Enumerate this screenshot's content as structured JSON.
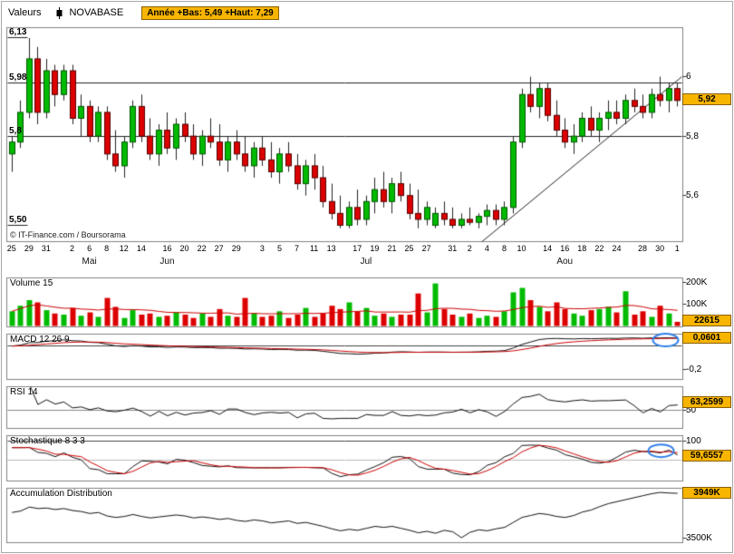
{
  "header": {
    "left_label": "Valeurs",
    "instrument": "NOVABASE",
    "year_range": "Année +Bas: 5,49 +Haut: 7,29"
  },
  "copyright": "© IT-Finance.com / Boursorama",
  "colors": {
    "up": "#00BB00",
    "up_border": "#005500",
    "down": "#DD0000",
    "down_border": "#550000",
    "ma_line": "#CC0000",
    "indicator_line": "#111111",
    "chip_bg": "#F8B500",
    "chip_border": "#8A6000",
    "annotation": "#2E7FE8",
    "frame": "#808080"
  },
  "main": {
    "value": 5.92,
    "value_label": "5,92",
    "left_labels": [
      [
        6.13,
        "6,13"
      ],
      [
        5.98,
        "5,98"
      ],
      [
        5.8,
        "5,8"
      ],
      [
        5.5,
        "5,50"
      ]
    ],
    "right_labels": [
      [
        6,
        "6"
      ],
      [
        5.8,
        "5,8"
      ],
      [
        5.6,
        "5,6"
      ]
    ],
    "hlines": [
      5.98,
      5.8
    ],
    "short_ticks": [
      6.13,
      5.5
    ],
    "trendline": {
      "i1": 53,
      "p1": 5.4,
      "i2": 78,
      "p2": 6.0
    }
  },
  "panels": {
    "volume": {
      "title": "Volume 15",
      "value": 22.615,
      "value_label": "22615",
      "yticks": [
        [
          200,
          "200K"
        ],
        [
          100,
          "100K"
        ]
      ]
    },
    "macd": {
      "title": "MACD 12 26 9",
      "value": 0.0601,
      "value_label": "0,0601",
      "yticks": [
        [
          -0.2,
          "-0,2"
        ]
      ]
    },
    "rsi": {
      "title": "RSI 14",
      "value": 63.2599,
      "value_label": "63,2599",
      "yticks": [
        [
          50,
          "50"
        ]
      ]
    },
    "stoch": {
      "title": "Stochastique 8 3 3",
      "value": 59.6557,
      "value_label": "59,6557",
      "yticks": [
        [
          100,
          "100"
        ]
      ]
    },
    "ad": {
      "title": "Accumulation Distribution",
      "value": 3949,
      "value_label": "3949K",
      "yticks": [
        [
          3500,
          "3500K"
        ]
      ]
    }
  },
  "annotations": [
    {
      "panel": "macd",
      "shape": "ellipse",
      "value": 0.05
    },
    {
      "panel": "stoch",
      "shape": "ellipse",
      "value": 75
    }
  ],
  "chart_data": {
    "type": "candlestick",
    "title": "NOVABASE",
    "ylim": [
      5.445,
      6.165
    ],
    "last_price": 5.92,
    "year_low": 5.49,
    "year_high": 7.29,
    "candles_ohlc": [
      [
        5.74,
        5.8,
        5.68,
        5.78
      ],
      [
        5.78,
        5.92,
        5.76,
        5.88
      ],
      [
        5.88,
        6.13,
        5.86,
        6.06
      ],
      [
        6.06,
        6.1,
        5.84,
        5.88
      ],
      [
        5.88,
        6.06,
        5.86,
        6.02
      ],
      [
        6.02,
        6.04,
        5.9,
        5.94
      ],
      [
        5.94,
        6.04,
        5.92,
        6.02
      ],
      [
        6.02,
        6.04,
        5.84,
        5.86
      ],
      [
        5.86,
        5.94,
        5.8,
        5.9
      ],
      [
        5.9,
        5.92,
        5.78,
        5.8
      ],
      [
        5.8,
        5.9,
        5.78,
        5.88
      ],
      [
        5.88,
        5.9,
        5.72,
        5.74
      ],
      [
        5.74,
        5.82,
        5.68,
        5.7
      ],
      [
        5.7,
        5.8,
        5.66,
        5.78
      ],
      [
        5.78,
        5.92,
        5.76,
        5.9
      ],
      [
        5.9,
        5.94,
        5.78,
        5.8
      ],
      [
        5.8,
        5.86,
        5.72,
        5.74
      ],
      [
        5.74,
        5.84,
        5.7,
        5.82
      ],
      [
        5.82,
        5.88,
        5.74,
        5.76
      ],
      [
        5.76,
        5.86,
        5.72,
        5.84
      ],
      [
        5.84,
        5.88,
        5.78,
        5.8
      ],
      [
        5.8,
        5.84,
        5.72,
        5.74
      ],
      [
        5.74,
        5.82,
        5.7,
        5.8
      ],
      [
        5.8,
        5.86,
        5.76,
        5.78
      ],
      [
        5.78,
        5.84,
        5.7,
        5.72
      ],
      [
        5.72,
        5.8,
        5.68,
        5.78
      ],
      [
        5.78,
        5.82,
        5.72,
        5.74
      ],
      [
        5.74,
        5.8,
        5.68,
        5.7
      ],
      [
        5.7,
        5.78,
        5.66,
        5.76
      ],
      [
        5.76,
        5.8,
        5.7,
        5.72
      ],
      [
        5.72,
        5.78,
        5.66,
        5.68
      ],
      [
        5.68,
        5.76,
        5.64,
        5.74
      ],
      [
        5.74,
        5.78,
        5.68,
        5.7
      ],
      [
        5.7,
        5.74,
        5.62,
        5.64
      ],
      [
        5.64,
        5.72,
        5.6,
        5.7
      ],
      [
        5.7,
        5.74,
        5.62,
        5.66
      ],
      [
        5.66,
        5.7,
        5.56,
        5.58
      ],
      [
        5.58,
        5.64,
        5.52,
        5.54
      ],
      [
        5.54,
        5.6,
        5.49,
        5.5
      ],
      [
        5.5,
        5.58,
        5.49,
        5.56
      ],
      [
        5.56,
        5.62,
        5.5,
        5.52
      ],
      [
        5.52,
        5.6,
        5.5,
        5.58
      ],
      [
        5.58,
        5.66,
        5.54,
        5.62
      ],
      [
        5.62,
        5.68,
        5.56,
        5.58
      ],
      [
        5.58,
        5.66,
        5.54,
        5.64
      ],
      [
        5.64,
        5.68,
        5.58,
        5.6
      ],
      [
        5.6,
        5.64,
        5.52,
        5.54
      ],
      [
        5.54,
        5.62,
        5.49,
        5.52
      ],
      [
        5.52,
        5.58,
        5.5,
        5.56
      ],
      [
        5.5,
        5.56,
        5.49,
        5.54
      ],
      [
        5.54,
        5.58,
        5.5,
        5.52
      ],
      [
        5.52,
        5.56,
        5.49,
        5.5
      ],
      [
        5.5,
        5.54,
        5.49,
        5.52
      ],
      [
        5.52,
        5.56,
        5.5,
        5.51
      ],
      [
        5.51,
        5.54,
        5.49,
        5.53
      ],
      [
        5.53,
        5.57,
        5.5,
        5.55
      ],
      [
        5.55,
        5.57,
        5.5,
        5.52
      ],
      [
        5.52,
        5.58,
        5.5,
        5.56
      ],
      [
        5.56,
        5.8,
        5.54,
        5.78
      ],
      [
        5.78,
        5.96,
        5.76,
        5.94
      ],
      [
        5.94,
        6.0,
        5.88,
        5.9
      ],
      [
        5.9,
        5.98,
        5.86,
        5.96
      ],
      [
        5.96,
        5.98,
        5.85,
        5.87
      ],
      [
        5.87,
        5.92,
        5.8,
        5.82
      ],
      [
        5.82,
        5.86,
        5.76,
        5.78
      ],
      [
        5.78,
        5.84,
        5.74,
        5.8
      ],
      [
        5.8,
        5.88,
        5.78,
        5.86
      ],
      [
        5.86,
        5.9,
        5.8,
        5.82
      ],
      [
        5.82,
        5.88,
        5.78,
        5.86
      ],
      [
        5.86,
        5.92,
        5.82,
        5.88
      ],
      [
        5.88,
        5.92,
        5.84,
        5.86
      ],
      [
        5.86,
        5.94,
        5.84,
        5.92
      ],
      [
        5.92,
        5.96,
        5.88,
        5.9
      ],
      [
        5.9,
        5.94,
        5.86,
        5.88
      ],
      [
        5.88,
        5.96,
        5.86,
        5.94
      ],
      [
        5.94,
        6.0,
        5.9,
        5.92
      ],
      [
        5.92,
        5.98,
        5.88,
        5.96
      ],
      [
        5.96,
        5.98,
        5.9,
        5.92
      ]
    ],
    "volumes_k": [
      70,
      95,
      120,
      110,
      75,
      60,
      55,
      85,
      50,
      65,
      45,
      130,
      90,
      40,
      75,
      55,
      60,
      45,
      50,
      65,
      55,
      40,
      60,
      45,
      80,
      50,
      45,
      130,
      60,
      45,
      50,
      70,
      40,
      55,
      85,
      45,
      60,
      95,
      80,
      110,
      70,
      85,
      50,
      60,
      45,
      55,
      55,
      150,
      65,
      195,
      80,
      55,
      45,
      60,
      40,
      50,
      45,
      70,
      155,
      175,
      120,
      90,
      70,
      110,
      80,
      60,
      50,
      75,
      80,
      90,
      65,
      160,
      55,
      70,
      45,
      95,
      60,
      22.6
    ],
    "volume_ma_period": 15,
    "macd_params": [
      12,
      26,
      9
    ],
    "rsi_period": 14,
    "stoch_params": [
      8,
      3,
      3
    ],
    "accumulation_distribution_k": [
      3755,
      3770,
      3810,
      3795,
      3800,
      3785,
      3795,
      3775,
      3765,
      3745,
      3755,
      3720,
      3705,
      3715,
      3735,
      3715,
      3700,
      3710,
      3720,
      3730,
      3720,
      3700,
      3710,
      3700,
      3685,
      3695,
      3675,
      3665,
      3680,
      3670,
      3650,
      3660,
      3670,
      3645,
      3655,
      3635,
      3615,
      3590,
      3570,
      3585,
      3575,
      3595,
      3615,
      3605,
      3615,
      3595,
      3575,
      3550,
      3565,
      3545,
      3575,
      3560,
      3500,
      3555,
      3580,
      3570,
      3590,
      3605,
      3655,
      3705,
      3725,
      3745,
      3735,
      3715,
      3705,
      3725,
      3760,
      3780,
      3815,
      3845,
      3865,
      3885,
      3905,
      3925,
      3945,
      3958,
      3952,
      3949
    ],
    "day_ticks": [
      [
        0,
        "25"
      ],
      [
        2,
        "29"
      ],
      [
        4,
        "31"
      ],
      [
        7,
        "2"
      ],
      [
        9,
        "6"
      ],
      [
        11,
        "8"
      ],
      [
        13,
        "12"
      ],
      [
        15,
        "14"
      ],
      [
        18,
        "16"
      ],
      [
        20,
        "20"
      ],
      [
        22,
        "22"
      ],
      [
        24,
        "27"
      ],
      [
        26,
        "29"
      ],
      [
        29,
        "3"
      ],
      [
        31,
        "5"
      ],
      [
        33,
        "7"
      ],
      [
        35,
        "11"
      ],
      [
        37,
        "13"
      ],
      [
        40,
        "17"
      ],
      [
        42,
        "19"
      ],
      [
        44,
        "21"
      ],
      [
        46,
        "25"
      ],
      [
        48,
        "27"
      ],
      [
        51,
        "31"
      ],
      [
        53,
        "2"
      ],
      [
        55,
        "4"
      ],
      [
        57,
        "8"
      ],
      [
        59,
        "10"
      ],
      [
        62,
        "14"
      ],
      [
        64,
        "16"
      ],
      [
        66,
        "18"
      ],
      [
        68,
        "22"
      ],
      [
        70,
        "24"
      ],
      [
        73,
        "28"
      ],
      [
        75,
        "30"
      ],
      [
        77,
        "1"
      ]
    ],
    "month_ticks": [
      [
        9,
        "Mai"
      ],
      [
        18,
        "Jun"
      ],
      [
        41,
        "Jul"
      ],
      [
        64,
        "Aou"
      ]
    ]
  }
}
